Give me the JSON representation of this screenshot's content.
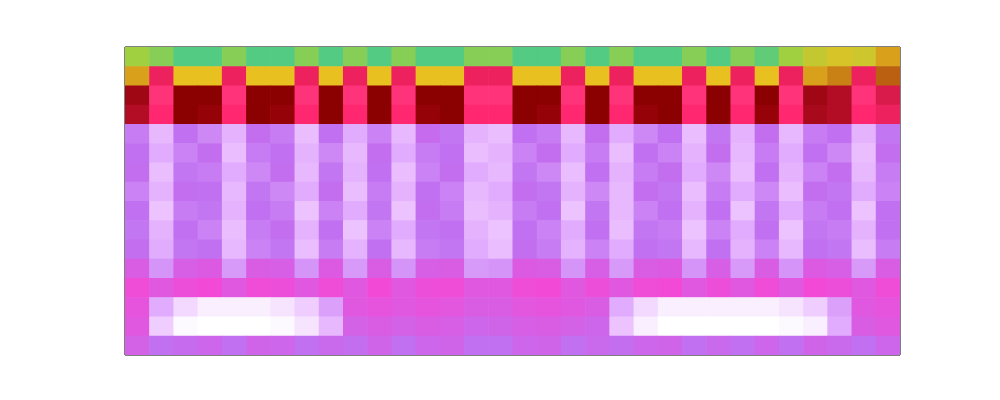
{
  "chart_data": {
    "type": "heatmap",
    "tick_labels": false,
    "xlim": [
      0,
      32
    ],
    "ylim": [
      0,
      16
    ],
    "cells": [
      [
        0.9,
        0.92,
        0.96,
        0.96,
        0.92,
        0.96,
        0.96,
        0.92,
        0.96,
        0.92,
        0.96,
        0.92,
        0.96,
        0.96,
        0.92,
        0.92,
        0.96,
        0.96,
        0.92,
        0.96,
        0.92,
        0.96,
        0.96,
        0.92,
        0.96,
        0.92,
        0.95,
        0.9,
        0.86,
        0.84,
        0.85,
        0.8
      ],
      [
        0.8,
        0.6,
        0.82,
        0.82,
        0.6,
        0.82,
        0.82,
        0.6,
        0.82,
        0.6,
        0.82,
        0.6,
        0.82,
        0.82,
        0.6,
        0.6,
        0.82,
        0.82,
        0.6,
        0.82,
        0.6,
        0.82,
        0.82,
        0.6,
        0.82,
        0.6,
        0.82,
        0.6,
        0.8,
        0.78,
        0.6,
        0.76
      ],
      [
        0.68,
        0.57,
        0.7,
        0.7,
        0.57,
        0.7,
        0.7,
        0.57,
        0.7,
        0.57,
        0.7,
        0.57,
        0.7,
        0.7,
        0.57,
        0.57,
        0.7,
        0.7,
        0.57,
        0.7,
        0.57,
        0.7,
        0.7,
        0.57,
        0.7,
        0.57,
        0.7,
        0.57,
        0.68,
        0.66,
        0.57,
        0.62
      ],
      [
        0.66,
        0.58,
        0.7,
        0.69,
        0.58,
        0.7,
        0.69,
        0.58,
        0.7,
        0.58,
        0.7,
        0.58,
        0.69,
        0.7,
        0.58,
        0.58,
        0.7,
        0.69,
        0.58,
        0.7,
        0.58,
        0.69,
        0.7,
        0.58,
        0.7,
        0.58,
        0.69,
        0.58,
        0.67,
        0.66,
        0.58,
        0.6
      ],
      [
        0.22,
        0.32,
        0.2,
        0.24,
        0.31,
        0.19,
        0.22,
        0.33,
        0.2,
        0.3,
        0.23,
        0.32,
        0.18,
        0.21,
        0.31,
        0.33,
        0.2,
        0.22,
        0.32,
        0.19,
        0.3,
        0.24,
        0.2,
        0.33,
        0.21,
        0.31,
        0.19,
        0.32,
        0.22,
        0.2,
        0.31,
        0.21
      ],
      [
        0.2,
        0.3,
        0.23,
        0.19,
        0.33,
        0.22,
        0.2,
        0.31,
        0.24,
        0.32,
        0.19,
        0.3,
        0.22,
        0.2,
        0.33,
        0.31,
        0.23,
        0.19,
        0.3,
        0.22,
        0.33,
        0.2,
        0.23,
        0.31,
        0.19,
        0.32,
        0.22,
        0.3,
        0.2,
        0.24,
        0.33,
        0.19
      ],
      [
        0.19,
        0.33,
        0.21,
        0.22,
        0.3,
        0.24,
        0.19,
        0.32,
        0.21,
        0.31,
        0.2,
        0.33,
        0.23,
        0.19,
        0.3,
        0.32,
        0.21,
        0.24,
        0.33,
        0.2,
        0.31,
        0.22,
        0.19,
        0.3,
        0.24,
        0.33,
        0.2,
        0.31,
        0.23,
        0.19,
        0.32,
        0.22
      ],
      [
        0.23,
        0.31,
        0.19,
        0.2,
        0.32,
        0.21,
        0.24,
        0.3,
        0.19,
        0.33,
        0.22,
        0.31,
        0.2,
        0.23,
        0.32,
        0.3,
        0.19,
        0.21,
        0.31,
        0.24,
        0.32,
        0.19,
        0.21,
        0.33,
        0.22,
        0.3,
        0.24,
        0.33,
        0.19,
        0.21,
        0.3,
        0.23
      ],
      [
        0.2,
        0.34,
        0.22,
        0.21,
        0.31,
        0.2,
        0.22,
        0.34,
        0.23,
        0.3,
        0.21,
        0.34,
        0.19,
        0.22,
        0.33,
        0.31,
        0.22,
        0.2,
        0.34,
        0.21,
        0.32,
        0.23,
        0.2,
        0.31,
        0.2,
        0.34,
        0.21,
        0.3,
        0.22,
        0.2,
        0.34,
        0.2
      ],
      [
        0.21,
        0.31,
        0.2,
        0.23,
        0.33,
        0.22,
        0.19,
        0.31,
        0.2,
        0.34,
        0.23,
        0.3,
        0.21,
        0.2,
        0.31,
        0.34,
        0.2,
        0.23,
        0.3,
        0.2,
        0.33,
        0.21,
        0.22,
        0.34,
        0.23,
        0.3,
        0.2,
        0.34,
        0.21,
        0.22,
        0.31,
        0.2
      ],
      [
        0.19,
        0.3,
        0.21,
        0.2,
        0.32,
        0.23,
        0.21,
        0.33,
        0.22,
        0.31,
        0.2,
        0.32,
        0.22,
        0.21,
        0.3,
        0.33,
        0.19,
        0.22,
        0.31,
        0.23,
        0.3,
        0.2,
        0.21,
        0.32,
        0.2,
        0.31,
        0.23,
        0.32,
        0.2,
        0.21,
        0.33,
        0.22
      ],
      [
        0.12,
        0.26,
        0.13,
        0.11,
        0.27,
        0.12,
        0.13,
        0.26,
        0.11,
        0.27,
        0.12,
        0.26,
        0.13,
        0.12,
        0.27,
        0.26,
        0.11,
        0.12,
        0.26,
        0.13,
        0.27,
        0.12,
        0.11,
        0.26,
        0.13,
        0.27,
        0.12,
        0.26,
        0.11,
        0.13,
        0.27,
        0.12
      ],
      [
        0.05,
        0.1,
        0.06,
        0.04,
        0.1,
        0.05,
        0.06,
        0.1,
        0.05,
        0.1,
        0.04,
        0.1,
        0.06,
        0.05,
        0.1,
        0.1,
        0.05,
        0.04,
        0.1,
        0.06,
        0.1,
        0.05,
        0.04,
        0.1,
        0.06,
        0.1,
        0.05,
        0.1,
        0.04,
        0.06,
        0.1,
        0.05
      ],
      [
        0.08,
        0.3,
        0.38,
        0.42,
        0.42,
        0.42,
        0.4,
        0.36,
        0.28,
        0.1,
        0.08,
        0.1,
        0.08,
        0.09,
        0.12,
        0.12,
        0.09,
        0.08,
        0.1,
        0.12,
        0.3,
        0.38,
        0.42,
        0.42,
        0.42,
        0.42,
        0.42,
        0.4,
        0.36,
        0.28,
        0.1,
        0.08
      ],
      [
        0.1,
        0.36,
        0.44,
        0.45,
        0.45,
        0.45,
        0.44,
        0.4,
        0.32,
        0.14,
        0.12,
        0.14,
        0.12,
        0.13,
        0.16,
        0.15,
        0.13,
        0.12,
        0.14,
        0.16,
        0.34,
        0.42,
        0.45,
        0.45,
        0.45,
        0.45,
        0.45,
        0.44,
        0.42,
        0.3,
        0.12,
        0.1
      ],
      [
        0.14,
        0.2,
        0.18,
        0.16,
        0.2,
        0.15,
        0.16,
        0.2,
        0.17,
        0.19,
        0.15,
        0.2,
        0.16,
        0.15,
        0.2,
        0.2,
        0.16,
        0.15,
        0.2,
        0.17,
        0.19,
        0.16,
        0.15,
        0.2,
        0.17,
        0.2,
        0.16,
        0.2,
        0.15,
        0.17,
        0.2,
        0.16
      ]
    ]
  }
}
